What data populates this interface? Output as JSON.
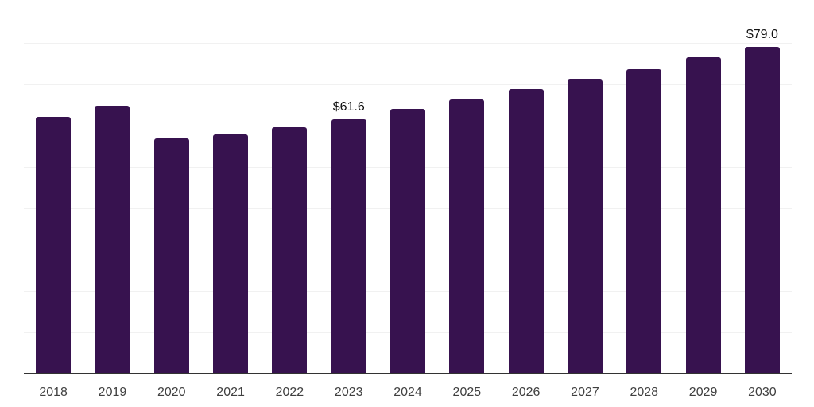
{
  "chart_data": {
    "type": "bar",
    "title": "",
    "xlabel": "",
    "ylabel": "",
    "categories": [
      "2018",
      "2019",
      "2020",
      "2021",
      "2022",
      "2023",
      "2024",
      "2025",
      "2026",
      "2027",
      "2028",
      "2029",
      "2030"
    ],
    "values": [
      62.1,
      64.9,
      57.0,
      57.9,
      59.6,
      61.6,
      64.0,
      66.3,
      68.8,
      71.2,
      73.7,
      76.5,
      79.0
    ],
    "bar_labels": {
      "2023": "$61.6",
      "2030": "$79.0"
    },
    "ylim": [
      0,
      90
    ],
    "grid": true,
    "grid_interval": 10,
    "legend": "none",
    "colors": {
      "bar": "#37124F",
      "grid": "#F1F1F1",
      "axis": "#333333",
      "value_label": "#111111",
      "tick_label": "#404040",
      "background": "#FFFFFF"
    }
  }
}
